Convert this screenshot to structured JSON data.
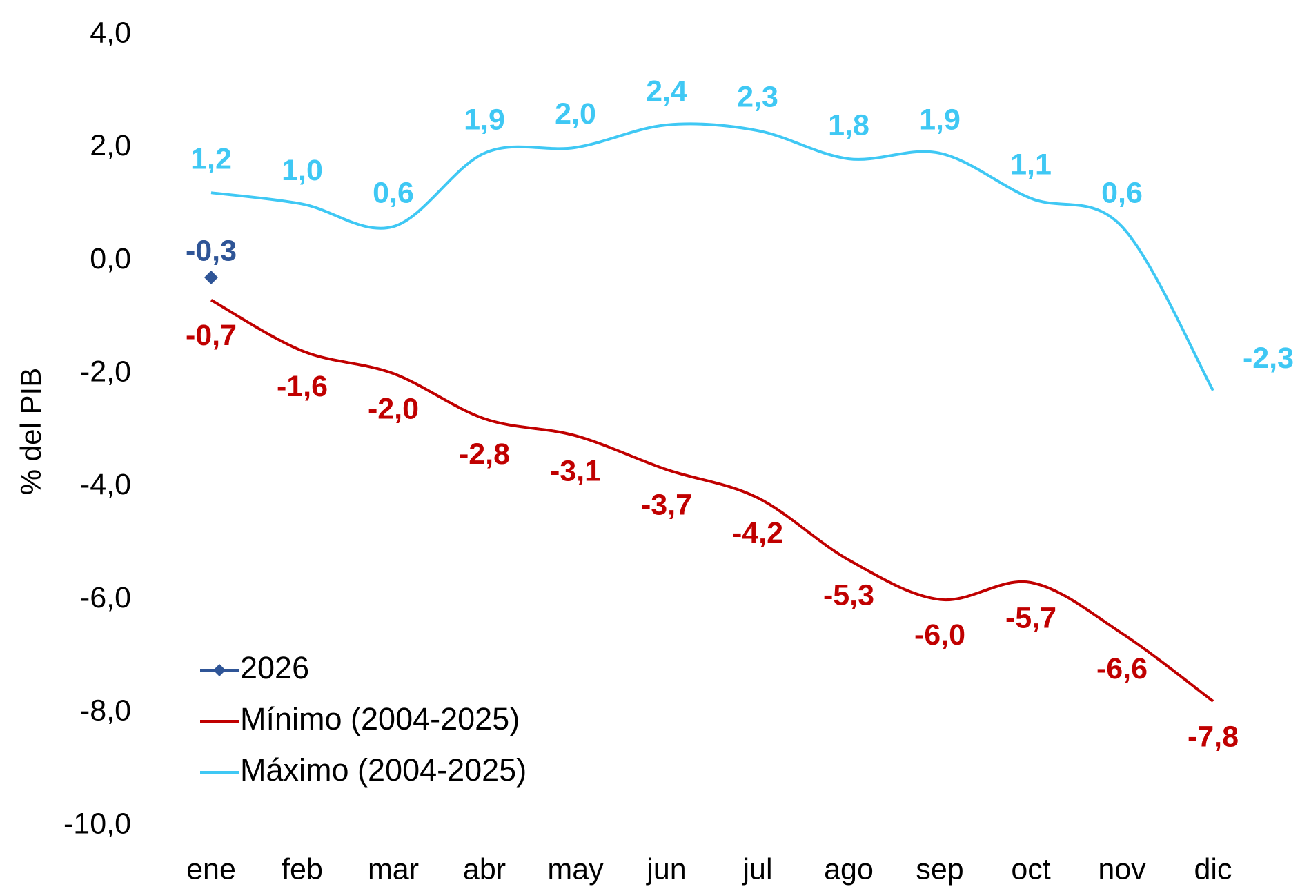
{
  "chart_data": {
    "type": "line",
    "y_label": "% del PIB",
    "categories": [
      "ene",
      "feb",
      "mar",
      "abr",
      "may",
      "jun",
      "jul",
      "ago",
      "sep",
      "oct",
      "nov",
      "dic"
    ],
    "series": [
      {
        "name": "2026",
        "color": "#2f5597",
        "marker": "diamond",
        "values": [
          -0.3,
          null,
          null,
          null,
          null,
          null,
          null,
          null,
          null,
          null,
          null,
          null
        ],
        "value_labels": [
          "-0,3",
          null,
          null,
          null,
          null,
          null,
          null,
          null,
          null,
          null,
          null,
          null
        ]
      },
      {
        "name": "Mínimo (2004-2025)",
        "color": "#c00000",
        "values": [
          -0.7,
          -1.6,
          -2.0,
          -2.8,
          -3.1,
          -3.7,
          -4.2,
          -5.3,
          -6.0,
          -5.7,
          -6.6,
          -7.8
        ],
        "value_labels": [
          "-0,7",
          "-1,6",
          "-2,0",
          "-2,8",
          "-3,1",
          "-3,7",
          "-4,2",
          "-5,3",
          "-6,0",
          "-5,7",
          "-6,6",
          "-7,8"
        ]
      },
      {
        "name": "Máximo (2004-2025)",
        "color": "#3fc8f4",
        "values": [
          1.2,
          1.0,
          0.6,
          1.9,
          2.0,
          2.4,
          2.3,
          1.8,
          1.9,
          1.1,
          0.6,
          -2.3
        ],
        "value_labels": [
          "1,2",
          "1,0",
          "0,6",
          "1,9",
          "2,0",
          "2,4",
          "2,3",
          "1,8",
          "1,9",
          "1,1",
          "0,6",
          "-2,3"
        ]
      }
    ],
    "ylim": [
      -10,
      4
    ],
    "yticks": [
      {
        "value": -10,
        "label": "-10,0"
      },
      {
        "value": -8,
        "label": "-8,0"
      },
      {
        "value": -6,
        "label": "-6,0"
      },
      {
        "value": -4,
        "label": "-4,0"
      },
      {
        "value": -2,
        "label": "-2,0"
      },
      {
        "value": 0,
        "label": "0,0"
      },
      {
        "value": 2,
        "label": "2,0"
      },
      {
        "value": 4,
        "label": "4,0"
      }
    ],
    "legend": "lower left",
    "grid": false
  }
}
